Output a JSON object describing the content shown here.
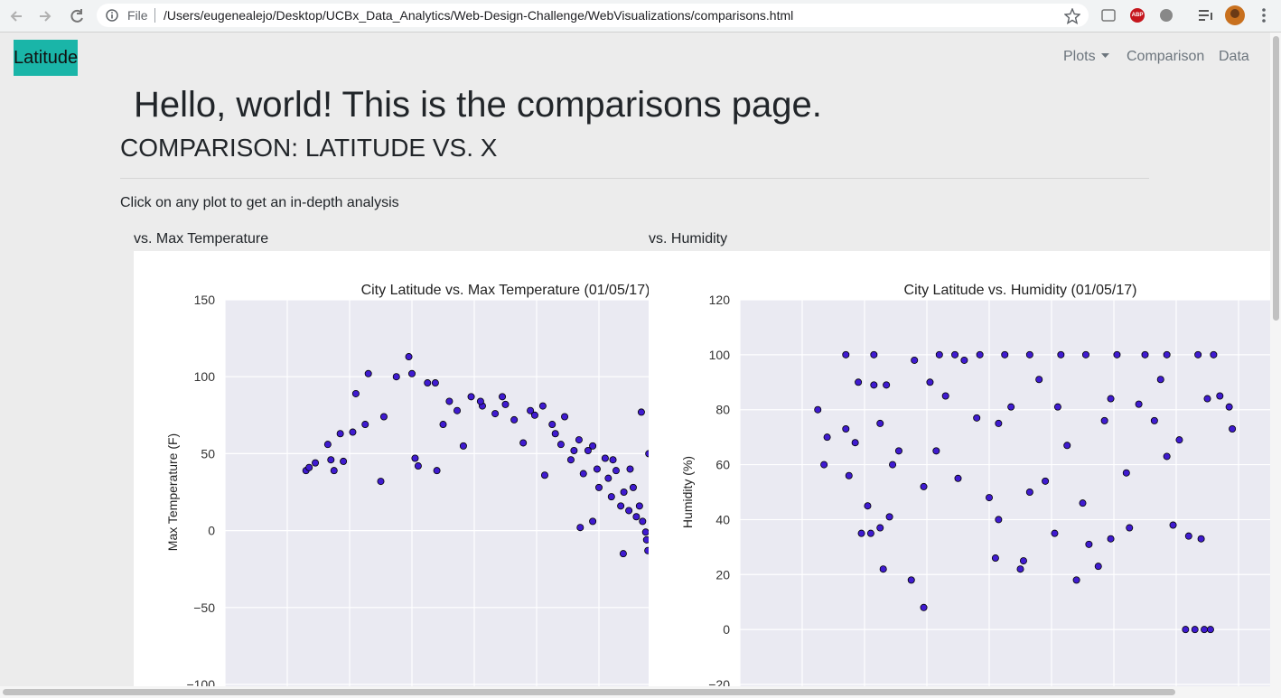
{
  "browser": {
    "scheme": "File",
    "url": "/Users/eugenealejo/Desktop/UCBx_Data_Analytics/Web-Design-Challenge/WebVisualizations/comparisons.html",
    "extension": "ABP"
  },
  "navbar": {
    "brand": "Latitude",
    "items": [
      "Plots",
      "Comparison",
      "Data"
    ]
  },
  "header": {
    "title": "Hello, world! This is the comparisons page.",
    "subtitle": "COMPARISON: LATITUDE VS. X"
  },
  "lead": "Click on any plot to get an in-depth analysis",
  "plot_labels": [
    "vs. Max Temperature",
    "vs. Humidity"
  ],
  "chart_data": [
    {
      "type": "scatter",
      "title": "City Latitude vs. Max Temperature (01/05/17)",
      "y_label": "Max Temperature (F)",
      "color": "#3f1bd0",
      "grid": true,
      "xlim": [
        -80,
        100
      ],
      "xticks": [
        -80,
        -60,
        -40,
        -20,
        0,
        20,
        40,
        60,
        80,
        100
      ],
      "ylim": [
        -100,
        150
      ],
      "yticks": [
        {
          "value": -100,
          "label": "−100"
        },
        {
          "value": -50,
          "label": "−50"
        },
        0,
        50,
        100,
        150
      ],
      "x": [
        -54,
        -53,
        -51,
        -47,
        -46,
        -45,
        -42,
        -43,
        -39,
        -38,
        -34,
        -35,
        -30,
        -29,
        -25,
        -21,
        -20,
        -19,
        -18,
        -15,
        -12,
        -10,
        -8,
        -5.5,
        -3.5,
        -1,
        2.6,
        6.7,
        9,
        12.8,
        15.7,
        19.4,
        22,
        25,
        27.8,
        29,
        31,
        33.6,
        35,
        36.5,
        38,
        39.4,
        40,
        42,
        43,
        44,
        45.5,
        47,
        48,
        49.6,
        51,
        52,
        53,
        53.6,
        54,
        55,
        55.3,
        55.7,
        47.8,
        34,
        38,
        22.6,
        -12.5,
        2,
        10,
        18,
        26,
        32,
        44.5,
        50,
        56
      ],
      "values": [
        39,
        41,
        44,
        56,
        46,
        39,
        45,
        63,
        64,
        89,
        102,
        69,
        32,
        74,
        100,
        113,
        102,
        47,
        42,
        96,
        39,
        69,
        84,
        78,
        55,
        87,
        81,
        76,
        87,
        72,
        57,
        75,
        81,
        69,
        56,
        74,
        46,
        59,
        37,
        52,
        55,
        40,
        28,
        47,
        34,
        22,
        39,
        16,
        25,
        13,
        28,
        9,
        16,
        77,
        6,
        -1,
        -6,
        -13,
        -15,
        2,
        6,
        36,
        96,
        84,
        82,
        78,
        63,
        52,
        46,
        40,
        50
      ]
    },
    {
      "type": "scatter",
      "title": "City Latitude vs. Humidity (01/05/17)",
      "y_label": "Humidity (%)",
      "color": "#3f1bd0",
      "grid": true,
      "xlim": [
        -80,
        100
      ],
      "xticks": [
        -80,
        -60,
        -40,
        -20,
        0,
        20,
        40,
        60,
        80,
        100
      ],
      "ylim": [
        -20,
        120
      ],
      "yticks": [
        {
          "value": -20,
          "label": "−20"
        },
        0,
        20,
        40,
        60,
        80,
        100,
        120
      ],
      "x": [
        -55,
        -53,
        -52,
        -46,
        -46,
        -45,
        -43,
        -42,
        -41,
        -39,
        -38,
        -37,
        -37,
        -35,
        -35,
        -34,
        -33,
        -32,
        -31,
        -29,
        -25,
        -24,
        -21,
        -21,
        -19,
        -17,
        -14,
        -10,
        -8,
        -4,
        -3,
        0,
        2,
        3,
        5,
        7,
        10,
        11,
        13,
        16,
        18,
        21,
        23,
        25,
        28,
        30,
        32,
        35,
        37,
        39,
        41,
        44,
        45,
        48,
        50,
        53,
        55,
        57,
        59,
        61,
        63,
        64,
        66,
        67,
        68,
        69,
        70,
        71,
        72,
        74,
        77,
        78,
        -16,
        -11,
        13,
        31,
        57,
        39,
        22,
        3
      ],
      "values": [
        80,
        60,
        70,
        100,
        73,
        56,
        68,
        90,
        35,
        45,
        35,
        100,
        89,
        75,
        37,
        22,
        89,
        41,
        60,
        65,
        18,
        98,
        52,
        8,
        90,
        65,
        85,
        55,
        98,
        77,
        100,
        48,
        26,
        40,
        100,
        81,
        22,
        25,
        50,
        91,
        54,
        35,
        100,
        67,
        18,
        46,
        31,
        23,
        76,
        33,
        100,
        57,
        37,
        82,
        100,
        76,
        91,
        63,
        38,
        69,
        0,
        34,
        0,
        100,
        33,
        0,
        84,
        0,
        100,
        85,
        81,
        73,
        100,
        100,
        100,
        100,
        100,
        84,
        81,
        75
      ]
    }
  ]
}
